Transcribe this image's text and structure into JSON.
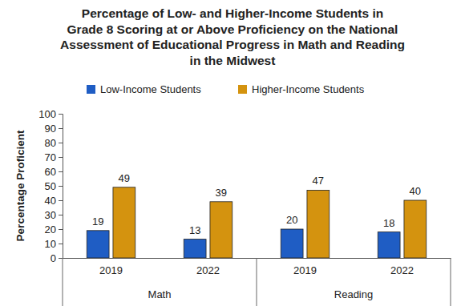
{
  "chart_data": {
    "type": "bar",
    "title": "Percentage of Low- and Higher-Income Students in\nGrade 8 Scoring at or Above Proficiency on the National\nAssessment of Educational Progress in Math and Reading\nin the Midwest",
    "categories": [
      "2019",
      "2022",
      "2019",
      "2022"
    ],
    "category_groups": [
      "Math",
      "Reading"
    ],
    "y_label": "Percentage Proficient",
    "series": [
      {
        "name": "Low-Income Students",
        "color": "#1f5dc4",
        "values": [
          19,
          13,
          20,
          18
        ]
      },
      {
        "name": "Higher-Income Students",
        "color": "#d4930f",
        "values": [
          49,
          39,
          47,
          40
        ]
      }
    ],
    "ylim": [
      0,
      100
    ],
    "yticks": [
      0,
      10,
      20,
      30,
      40,
      50,
      60,
      70,
      80,
      90,
      100
    ],
    "grid": false,
    "legend": "top",
    "data_labels": true
  }
}
